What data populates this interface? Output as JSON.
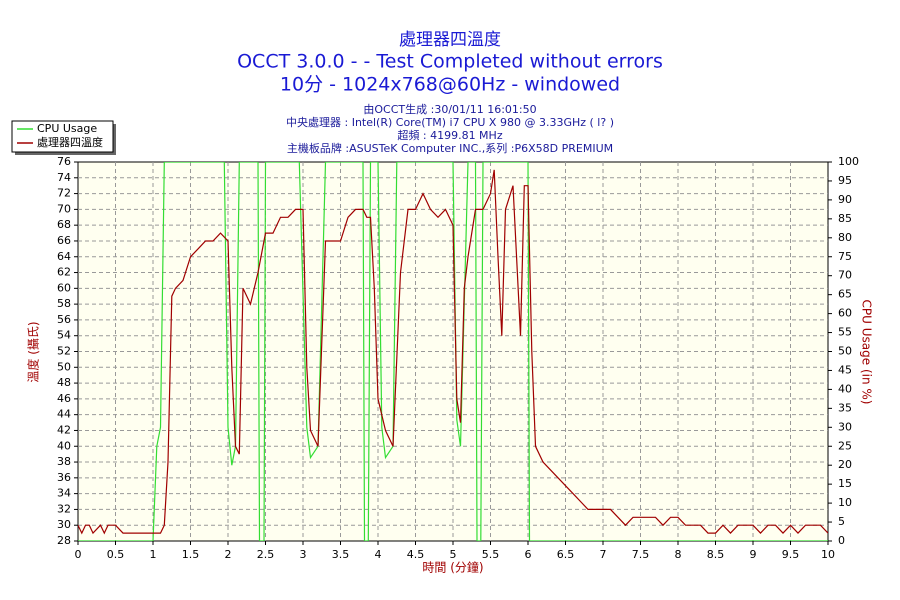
{
  "chart_data": {
    "type": "line",
    "title": "處理器四溫度",
    "subtitle": [
      "OCCT 3.0.0 -  - Test Completed without errors",
      "10分 - 1024x768@60Hz - windowed"
    ],
    "info": [
      "由OCCT生成 :30/01/11 16:01:50",
      "中央處理器 : Intel(R) Core(TM) i7 CPU X 980 @ 3.33GHz (  l? )",
      "超頻 : 4199.81 MHz",
      "主機板品牌 :ASUSTeK Computer INC.,系列 :P6X58D PREMIUM"
    ],
    "xlabel": "時間 (分鐘)",
    "ylabel": "溫度 (攝氏)",
    "y2label": "CPU Usage (in %)",
    "xlim": [
      0,
      10
    ],
    "xticks": [
      0,
      0.5,
      1,
      1.5,
      2,
      2.5,
      3,
      3.5,
      4,
      4.5,
      5,
      5.5,
      6,
      6.5,
      7,
      7.5,
      8,
      8.5,
      9,
      9.5,
      10
    ],
    "ylim": [
      28,
      76
    ],
    "yticks": [
      28,
      30,
      32,
      34,
      36,
      38,
      40,
      42,
      44,
      46,
      48,
      50,
      52,
      54,
      56,
      58,
      60,
      62,
      64,
      66,
      68,
      70,
      72,
      74,
      76
    ],
    "y2lim": [
      0,
      100
    ],
    "y2ticks": [
      0,
      5,
      10,
      15,
      20,
      25,
      30,
      35,
      40,
      45,
      50,
      55,
      60,
      65,
      70,
      75,
      80,
      85,
      90,
      95,
      100
    ],
    "grid": true,
    "legend": "top-left",
    "series": [
      {
        "name": "CPU Usage",
        "color": "#33dd33",
        "axis": "y2",
        "x": [
          0,
          1.0,
          1.05,
          1.1,
          1.15,
          1.95,
          2.0,
          2.05,
          2.1,
          2.15,
          2.4,
          2.42,
          2.48,
          2.5,
          2.95,
          3.05,
          3.1,
          3.2,
          3.3,
          3.8,
          3.82,
          3.87,
          3.9,
          4.0,
          4.05,
          4.1,
          4.2,
          4.25,
          5.0,
          5.05,
          5.1,
          5.2,
          5.3,
          5.32,
          5.37,
          5.4,
          6.0,
          6.02,
          10
        ],
        "values": [
          0,
          0,
          25,
          30,
          100,
          100,
          30,
          20,
          25,
          100,
          100,
          0,
          0,
          100,
          100,
          30,
          22,
          25,
          100,
          100,
          0,
          0,
          100,
          100,
          30,
          22,
          25,
          100,
          100,
          32,
          25,
          100,
          100,
          0,
          0,
          100,
          100,
          0,
          0
        ]
      },
      {
        "name": "處理器四溫度",
        "color": "#a00000",
        "axis": "y",
        "x": [
          0,
          0.05,
          0.1,
          0.15,
          0.2,
          0.3,
          0.35,
          0.4,
          0.5,
          0.6,
          1.0,
          1.1,
          1.15,
          1.2,
          1.25,
          1.3,
          1.4,
          1.5,
          1.6,
          1.7,
          1.8,
          1.9,
          2.0,
          2.05,
          2.1,
          2.15,
          2.2,
          2.3,
          2.4,
          2.5,
          2.6,
          2.7,
          2.8,
          2.9,
          3.0,
          3.05,
          3.1,
          3.2,
          3.3,
          3.4,
          3.5,
          3.6,
          3.7,
          3.8,
          3.85,
          3.9,
          3.95,
          4.0,
          4.1,
          4.2,
          4.3,
          4.4,
          4.5,
          4.6,
          4.7,
          4.8,
          4.9,
          5.0,
          5.05,
          5.1,
          5.15,
          5.2,
          5.3,
          5.4,
          5.5,
          5.55,
          5.6,
          5.65,
          5.7,
          5.8,
          5.9,
          5.95,
          6.0,
          6.05,
          6.1,
          6.2,
          6.3,
          6.4,
          6.5,
          6.6,
          6.7,
          6.8,
          6.9,
          7.0,
          7.1,
          7.2,
          7.3,
          7.4,
          7.5,
          7.6,
          7.7,
          7.8,
          7.9,
          8.0,
          8.1,
          8.2,
          8.3,
          8.4,
          8.5,
          8.6,
          8.7,
          8.8,
          8.9,
          9.0,
          9.1,
          9.2,
          9.3,
          9.4,
          9.5,
          9.6,
          9.7,
          9.8,
          9.9,
          10.0
        ],
        "values": [
          30,
          29,
          30,
          30,
          29,
          30,
          29,
          30,
          30,
          29,
          29,
          29,
          30,
          38,
          59,
          60,
          61,
          64,
          65,
          66,
          66,
          67,
          66,
          50,
          40,
          39,
          60,
          58,
          62,
          67,
          67,
          69,
          69,
          70,
          70,
          50,
          42,
          40,
          66,
          66,
          66,
          69,
          70,
          70,
          69,
          69,
          60,
          46,
          42,
          40,
          62,
          70,
          70,
          72,
          70,
          69,
          70,
          68,
          46,
          43,
          60,
          64,
          70,
          70,
          72,
          75,
          64,
          54,
          70,
          73,
          54,
          73,
          73,
          52,
          40,
          38,
          37,
          36,
          35,
          34,
          33,
          32,
          32,
          32,
          32,
          31,
          30,
          31,
          31,
          31,
          31,
          30,
          31,
          31,
          30,
          30,
          30,
          29,
          29,
          30,
          29,
          30,
          30,
          30,
          29,
          30,
          30,
          29,
          30,
          29,
          30,
          30,
          30,
          29
        ]
      }
    ]
  }
}
